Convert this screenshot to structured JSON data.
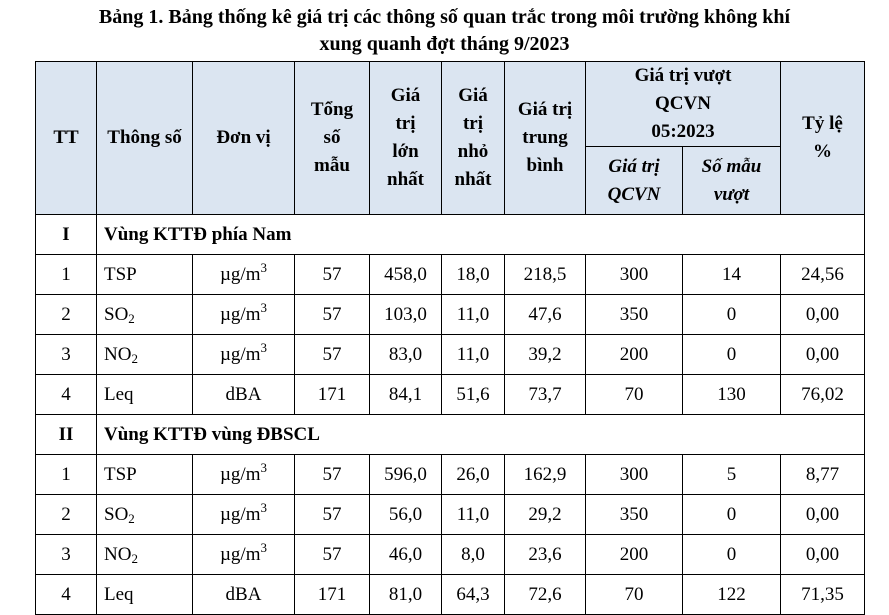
{
  "caption": {
    "line1": "Bảng 1. Bảng thống kê giá trị các thông số quan trắc trong môi trường không khí",
    "line2": "xung quanh đợt tháng 9/2023"
  },
  "headers": {
    "tt": "TT",
    "thong_so": "Thông số",
    "don_vi": "Đơn vị",
    "tong_so_mau": "Tổng số mẫu",
    "gia_tri_lon_nhat": "Giá trị lớn nhất",
    "gia_tri_nho_nhat": "Giá trị nhỏ nhất",
    "gia_tri_trung_binh": "Giá trị trung bình",
    "vuot_qcvn": "Giá trị vượt QCVN 05:2023",
    "gia_tri_qcvn": "Giá trị QCVN",
    "so_mau_vuot": "Số mẫu vượt",
    "ty_le": "Tỷ lệ %"
  },
  "groups": [
    {
      "id": "I",
      "name": "Vùng KTTĐ phía Nam",
      "rows": [
        {
          "tt": "1",
          "param": "TSP",
          "sub": "",
          "unit_base": "µg/m",
          "unit_sup": "3",
          "count": "57",
          "max": "458,0",
          "min": "18,0",
          "avg": "218,5",
          "qcvn": "300",
          "exceed": "14",
          "pct": "24,56"
        },
        {
          "tt": "2",
          "param": "SO",
          "sub": "2",
          "unit_base": "µg/m",
          "unit_sup": "3",
          "count": "57",
          "max": "103,0",
          "min": "11,0",
          "avg": "47,6",
          "qcvn": "350",
          "exceed": "0",
          "pct": "0,00"
        },
        {
          "tt": "3",
          "param": "NO",
          "sub": "2",
          "unit_base": "µg/m",
          "unit_sup": "3",
          "count": "57",
          "max": "83,0",
          "min": "11,0",
          "avg": "39,2",
          "qcvn": "200",
          "exceed": "0",
          "pct": "0,00"
        },
        {
          "tt": "4",
          "param": "Leq",
          "sub": "",
          "unit_base": "dBA",
          "unit_sup": "",
          "count": "171",
          "max": "84,1",
          "min": "51,6",
          "avg": "73,7",
          "qcvn": "70",
          "exceed": "130",
          "pct": "76,02"
        }
      ]
    },
    {
      "id": "II",
      "name": "Vùng KTTĐ vùng ĐBSCL",
      "rows": [
        {
          "tt": "1",
          "param": "TSP",
          "sub": "",
          "unit_base": "µg/m",
          "unit_sup": "3",
          "count": "57",
          "max": "596,0",
          "min": "26,0",
          "avg": "162,9",
          "qcvn": "300",
          "exceed": "5",
          "pct": "8,77"
        },
        {
          "tt": "2",
          "param": "SO",
          "sub": "2",
          "unit_base": "µg/m",
          "unit_sup": "3",
          "count": "57",
          "max": "56,0",
          "min": "11,0",
          "avg": "29,2",
          "qcvn": "350",
          "exceed": "0",
          "pct": "0,00"
        },
        {
          "tt": "3",
          "param": "NO",
          "sub": "2",
          "unit_base": "µg/m",
          "unit_sup": "3",
          "count": "57",
          "max": "46,0",
          "min": "8,0",
          "avg": "23,6",
          "qcvn": "200",
          "exceed": "0",
          "pct": "0,00"
        },
        {
          "tt": "4",
          "param": "Leq",
          "sub": "",
          "unit_base": "dBA",
          "unit_sup": "",
          "count": "171",
          "max": "81,0",
          "min": "64,3",
          "avg": "72,6",
          "qcvn": "70",
          "exceed": "122",
          "pct": "71,35"
        }
      ]
    }
  ]
}
